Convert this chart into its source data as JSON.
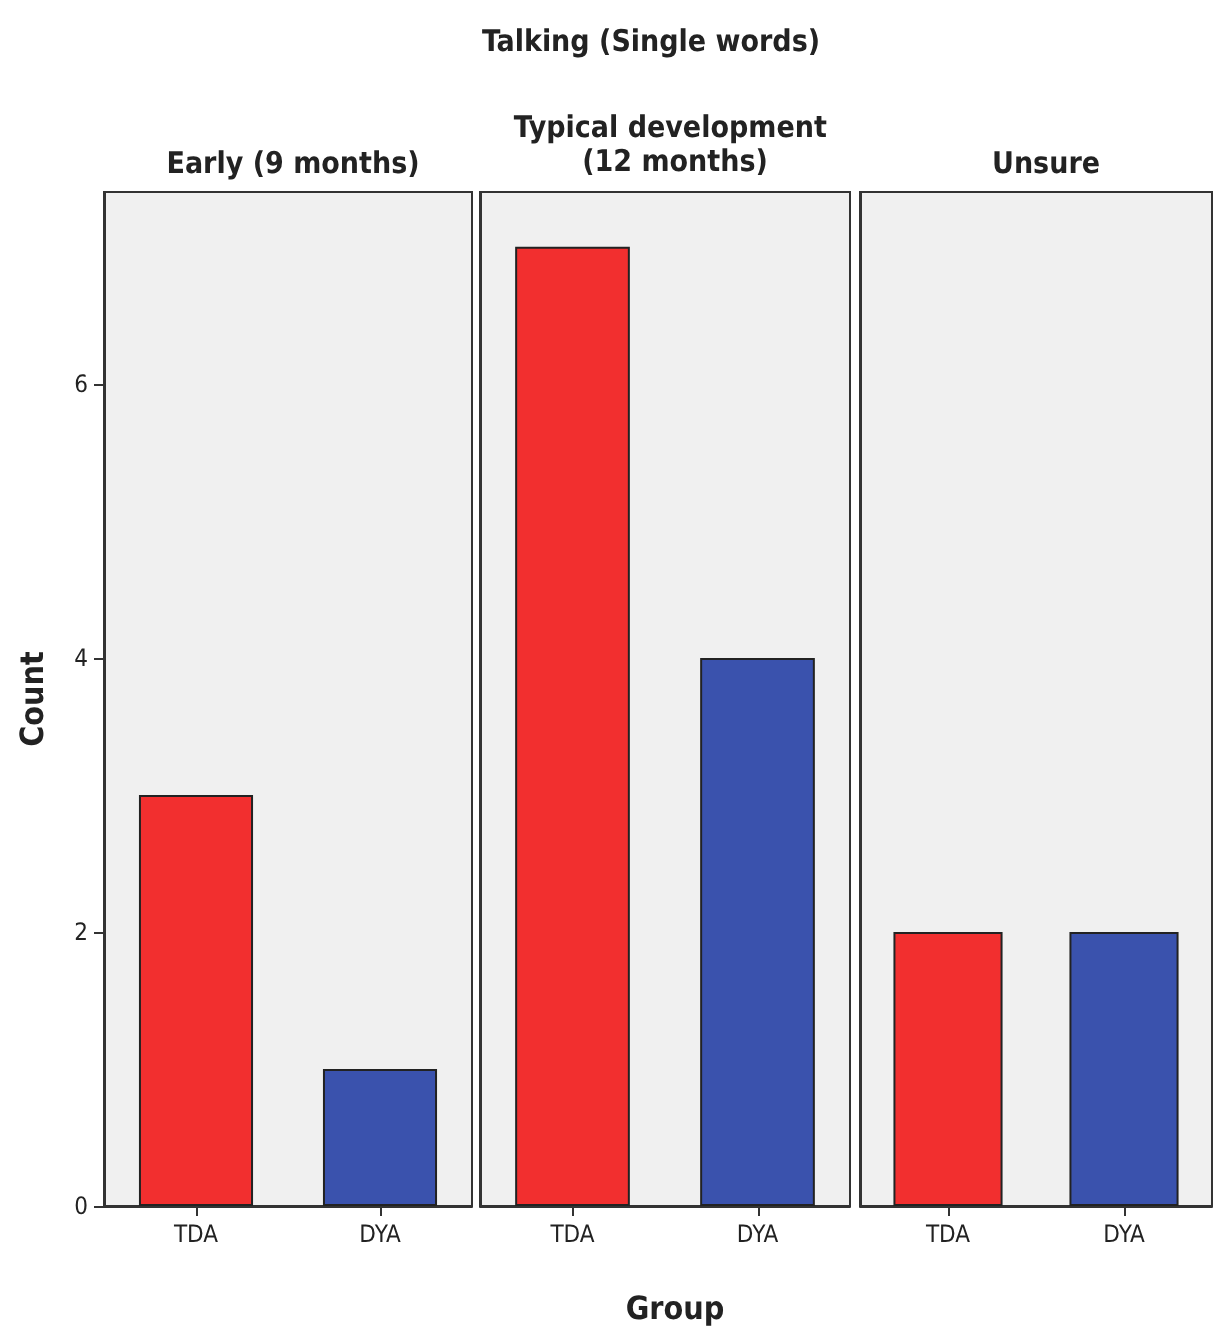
{
  "chart_data": [
    {
      "type": "bar",
      "title": "Early (9 months)",
      "ylabel": "Count",
      "categories": [
        "TDA",
        "DYA"
      ],
      "values": [
        3,
        1
      ],
      "colors": [
        "#f22f2f",
        "#3a52ad"
      ],
      "ylim": [
        0,
        7.4
      ],
      "yticks": [
        0,
        2,
        4,
        6
      ],
      "grid": false
    },
    {
      "type": "bar",
      "title": "Typical development (12 months)",
      "xlabel": "Group",
      "annotations": [
        "Talking (Single words)"
      ],
      "categories": [
        "TDA",
        "DYA"
      ],
      "values": [
        7,
        4
      ],
      "colors": [
        "#f22f2f",
        "#3a52ad"
      ],
      "ylim": [
        0,
        7.4
      ],
      "yticks": [
        0,
        2,
        4,
        6
      ],
      "tick_labels": "x",
      "grid": false
    },
    {
      "type": "bar",
      "title": "Unsure",
      "categories": [
        "TDA",
        "DYA"
      ],
      "values": [
        2,
        2
      ],
      "colors": [
        "#f22f2f",
        "#3a52ad"
      ],
      "ylim": [
        0,
        7.4
      ],
      "yticks": [
        0,
        2,
        4,
        6
      ],
      "tick_labels": "x",
      "grid": false
    }
  ]
}
